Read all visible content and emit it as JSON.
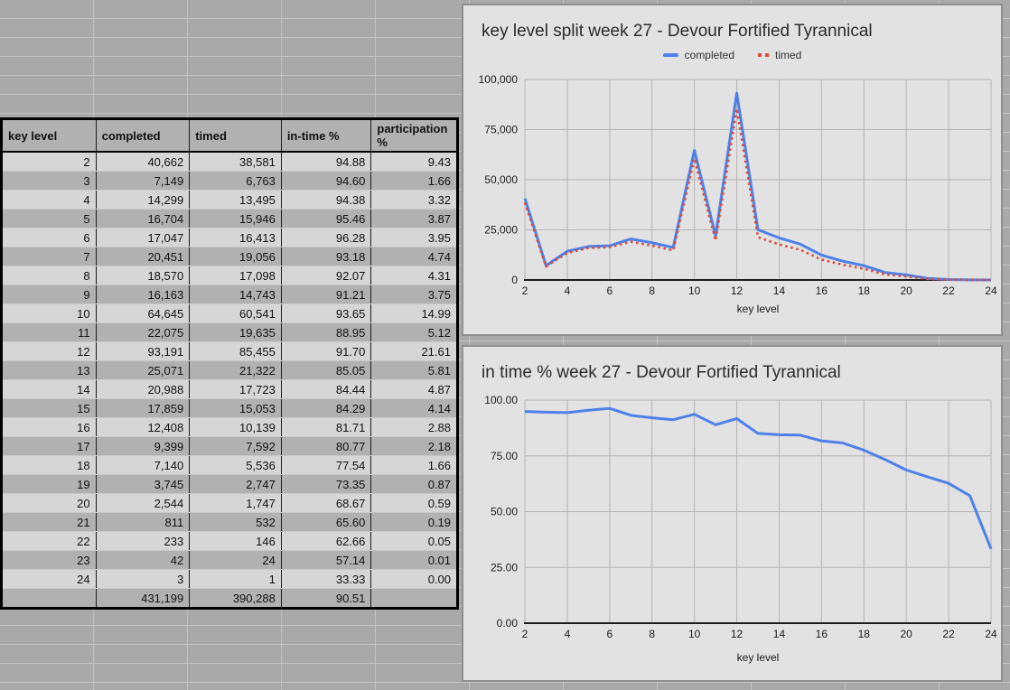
{
  "colors": {
    "series_blue": "#4d80e8",
    "series_red": "#dc4b3c",
    "sheet_background": "#a9a9a9",
    "sheet_gridline": "#c3c3c3",
    "row_band_light": "#d6d6d6",
    "row_band_dark": "#b1b1b1",
    "chart_panel_background": "#e2e2e2",
    "chart_gridline": "#b4b4b4"
  },
  "table": {
    "headers": [
      "key level",
      "completed",
      "timed",
      "in-time %",
      "participation %"
    ],
    "rows": [
      [
        "2",
        "40,662",
        "38,581",
        "94.88",
        "9.43"
      ],
      [
        "3",
        "7,149",
        "6,763",
        "94.60",
        "1.66"
      ],
      [
        "4",
        "14,299",
        "13,495",
        "94.38",
        "3.32"
      ],
      [
        "5",
        "16,704",
        "15,946",
        "95.46",
        "3.87"
      ],
      [
        "6",
        "17,047",
        "16,413",
        "96.28",
        "3.95"
      ],
      [
        "7",
        "20,451",
        "19,056",
        "93.18",
        "4.74"
      ],
      [
        "8",
        "18,570",
        "17,098",
        "92.07",
        "4.31"
      ],
      [
        "9",
        "16,163",
        "14,743",
        "91.21",
        "3.75"
      ],
      [
        "10",
        "64,645",
        "60,541",
        "93.65",
        "14.99"
      ],
      [
        "11",
        "22,075",
        "19,635",
        "88.95",
        "5.12"
      ],
      [
        "12",
        "93,191",
        "85,455",
        "91.70",
        "21.61"
      ],
      [
        "13",
        "25,071",
        "21,322",
        "85.05",
        "5.81"
      ],
      [
        "14",
        "20,988",
        "17,723",
        "84.44",
        "4.87"
      ],
      [
        "15",
        "17,859",
        "15,053",
        "84.29",
        "4.14"
      ],
      [
        "16",
        "12,408",
        "10,139",
        "81.71",
        "2.88"
      ],
      [
        "17",
        "9,399",
        "7,592",
        "80.77",
        "2.18"
      ],
      [
        "18",
        "7,140",
        "5,536",
        "77.54",
        "1.66"
      ],
      [
        "19",
        "3,745",
        "2,747",
        "73.35",
        "0.87"
      ],
      [
        "20",
        "2,544",
        "1,747",
        "68.67",
        "0.59"
      ],
      [
        "21",
        "811",
        "532",
        "65.60",
        "0.19"
      ],
      [
        "22",
        "233",
        "146",
        "62.66",
        "0.05"
      ],
      [
        "23",
        "42",
        "24",
        "57.14",
        "0.01"
      ],
      [
        "24",
        "3",
        "1",
        "33.33",
        "0.00"
      ]
    ],
    "total": [
      "",
      "431,199",
      "390,288",
      "90.51",
      ""
    ]
  },
  "chart_data": [
    {
      "type": "line",
      "title": "key level split week 27 - Devour Fortified Tyrannical",
      "xlabel": "key level",
      "legend_position": "top",
      "grid": true,
      "x": [
        2,
        3,
        4,
        5,
        6,
        7,
        8,
        9,
        10,
        11,
        12,
        13,
        14,
        15,
        16,
        17,
        18,
        19,
        20,
        21,
        22,
        23,
        24
      ],
      "series": [
        {
          "name": "completed",
          "color": "#4d80e8",
          "style": "solid",
          "values": [
            40662,
            7149,
            14299,
            16704,
            17047,
            20451,
            18570,
            16163,
            64645,
            22075,
            93191,
            25071,
            20988,
            17859,
            12408,
            9399,
            7140,
            3745,
            2544,
            811,
            233,
            42,
            3
          ]
        },
        {
          "name": "timed",
          "color": "#dc4b3c",
          "style": "dotted",
          "values": [
            38581,
            6763,
            13495,
            15946,
            16413,
            19056,
            17098,
            14743,
            60541,
            19635,
            85455,
            21322,
            17723,
            15053,
            10139,
            7592,
            5536,
            2747,
            1747,
            532,
            146,
            24,
            1
          ]
        }
      ],
      "ylim": [
        0,
        100000
      ],
      "ytick_values": [
        0,
        25000,
        50000,
        75000,
        100000
      ],
      "ytick_labels": [
        "0",
        "25,000",
        "50,000",
        "75,000",
        "100,000"
      ],
      "xtick_values": [
        2,
        4,
        6,
        8,
        10,
        12,
        14,
        16,
        18,
        20,
        22,
        24
      ]
    },
    {
      "type": "line",
      "title": "in time % week 27 - Devour Fortified Tyrannical",
      "xlabel": "key level",
      "legend_position": "none",
      "grid": true,
      "x": [
        2,
        3,
        4,
        5,
        6,
        7,
        8,
        9,
        10,
        11,
        12,
        13,
        14,
        15,
        16,
        17,
        18,
        19,
        20,
        21,
        22,
        23,
        24
      ],
      "series": [
        {
          "name": "in-time %",
          "color": "#4d80e8",
          "style": "solid",
          "values": [
            94.88,
            94.6,
            94.38,
            95.46,
            96.28,
            93.18,
            92.07,
            91.21,
            93.65,
            88.95,
            91.7,
            85.05,
            84.44,
            84.29,
            81.71,
            80.77,
            77.54,
            73.35,
            68.67,
            65.6,
            62.66,
            57.14,
            33.33
          ]
        }
      ],
      "ylim": [
        0,
        100
      ],
      "ytick_values": [
        0,
        25,
        50,
        75,
        100
      ],
      "ytick_labels": [
        "0.00",
        "25.00",
        "50.00",
        "75.00",
        "100.00"
      ],
      "xtick_values": [
        2,
        4,
        6,
        8,
        10,
        12,
        14,
        16,
        18,
        20,
        22,
        24
      ]
    }
  ]
}
